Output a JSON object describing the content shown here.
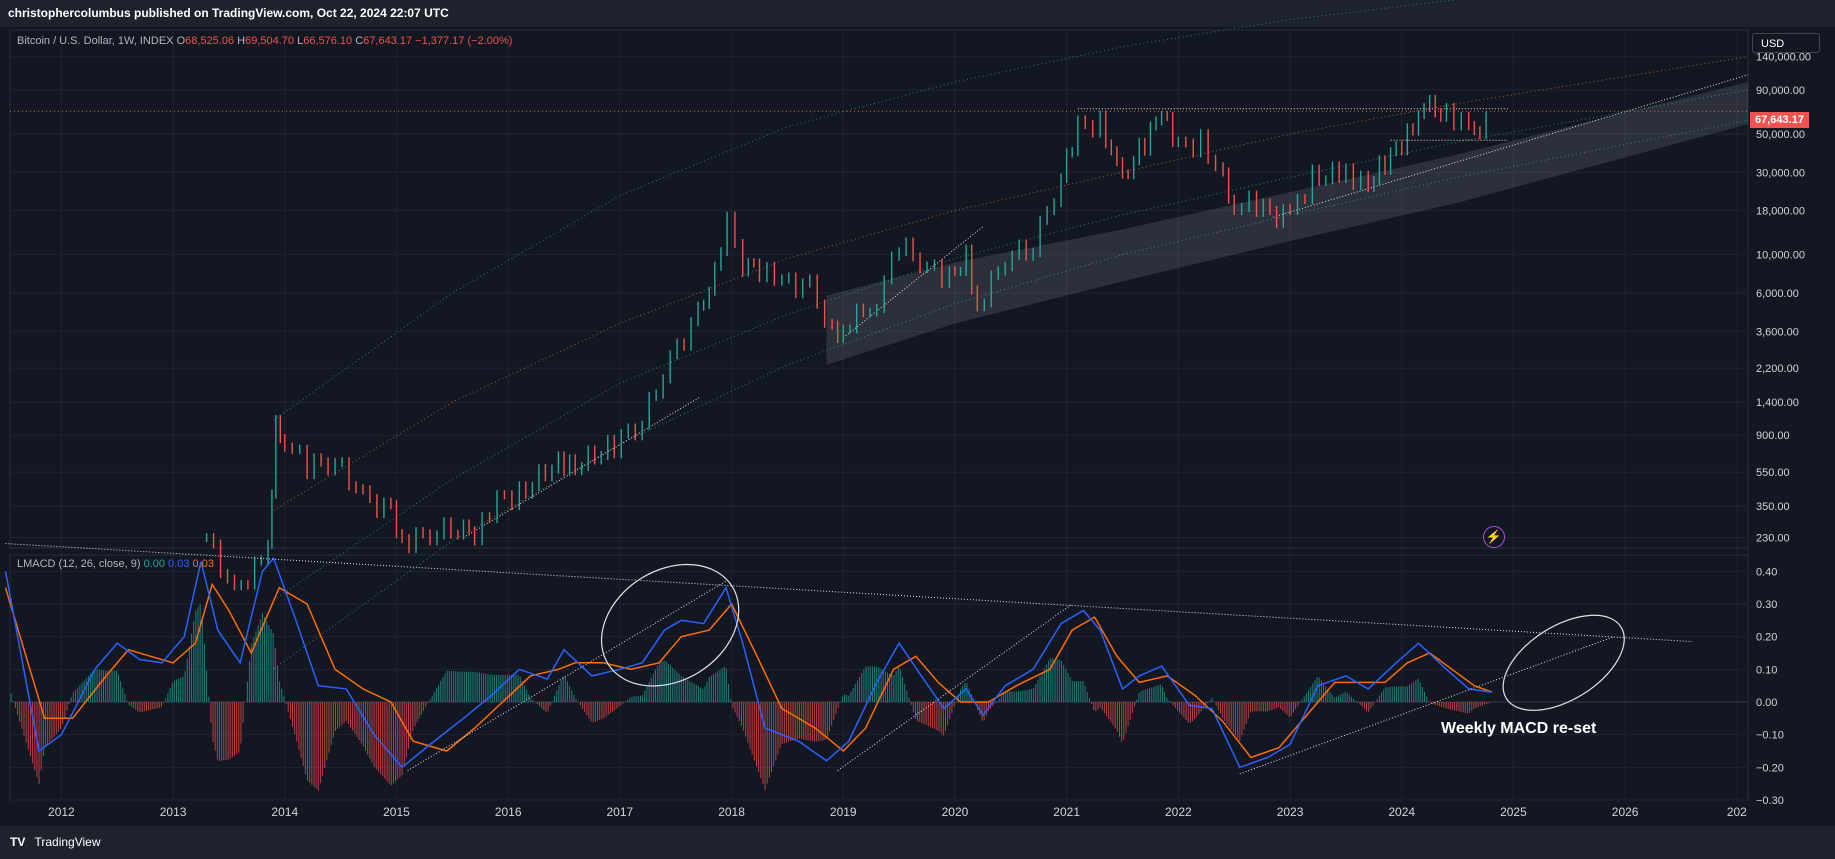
{
  "header": {
    "published": "christophercolumbus published on TradingView.com, Oct 22, 2024 22:07 UTC"
  },
  "legend": {
    "symbol": "Bitcoin / U.S. Dollar, 1W, INDEX",
    "o_label": "O",
    "o": "68,525.06",
    "h_label": "H",
    "h": "69,504.70",
    "l_label": "L",
    "l": "66,576.10",
    "c_label": "C",
    "c": "67,643.17",
    "change": "−1,377.17 (−2.00%)"
  },
  "macd_legend": {
    "name": "LMACD (12, 26, close, 9)",
    "hist": "0.00",
    "macd": "0.03",
    "signal": "0.03"
  },
  "currency": "USD",
  "last_price": "67,643.17",
  "annotation": "Weekly MACD re-set",
  "footer": {
    "brand": "TradingView",
    "icon": "tradingview-logo-icon"
  },
  "lightning_icon": "lightning-icon",
  "colors": {
    "up": "#26a69a",
    "down": "#ef5350",
    "macd": "#2962ff",
    "signal": "#ff6d00",
    "last_price": "#ef5350",
    "background": "#131722"
  },
  "chart_data": [
    {
      "type": "candlestick",
      "title": "Bitcoin / U.S. Dollar, 1W, INDEX",
      "scale": "log",
      "ylim": [
        200,
        200000
      ],
      "xlim": [
        "2011-07",
        "2027-01"
      ],
      "y_ticks": [
        "140,000.00",
        "90,000.00",
        "50,000.00",
        "30,000.00",
        "18,000.00",
        "10,000.00",
        "6,000.00",
        "3,600.00",
        "2,200.00",
        "1,400.00",
        "900.00",
        "550.00",
        "350.00",
        "230.00"
      ],
      "x_ticks": [
        "2012",
        "2013",
        "2014",
        "2015",
        "2016",
        "2017",
        "2018",
        "2019",
        "2020",
        "2021",
        "2022",
        "2023",
        "2024",
        "2025",
        "2026",
        "202"
      ],
      "grid": true,
      "last_price": 67643.17,
      "price_path": [
        [
          2013.3,
          230
        ],
        [
          2013.55,
          110
        ],
        [
          2013.85,
          190
        ],
        [
          2013.92,
          1100
        ],
        [
          2014.0,
          850
        ],
        [
          2014.2,
          600
        ],
        [
          2014.45,
          640
        ],
        [
          2014.7,
          400
        ],
        [
          2014.95,
          320
        ],
        [
          2015.05,
          220
        ],
        [
          2015.3,
          240
        ],
        [
          2015.55,
          270
        ],
        [
          2015.7,
          230
        ],
        [
          2015.9,
          380
        ],
        [
          2016.1,
          410
        ],
        [
          2016.45,
          650
        ],
        [
          2016.6,
          600
        ],
        [
          2016.95,
          800
        ],
        [
          2017.2,
          1100
        ],
        [
          2017.45,
          2500
        ],
        [
          2017.7,
          4500
        ],
        [
          2017.85,
          8000
        ],
        [
          2017.96,
          17500
        ],
        [
          2018.1,
          9000
        ],
        [
          2018.25,
          8000
        ],
        [
          2018.45,
          7000
        ],
        [
          2018.7,
          6500
        ],
        [
          2018.9,
          3600
        ],
        [
          2019.0,
          3800
        ],
        [
          2019.3,
          5500
        ],
        [
          2019.5,
          11500
        ],
        [
          2019.75,
          8500
        ],
        [
          2019.95,
          7300
        ],
        [
          2020.1,
          9800
        ],
        [
          2020.2,
          5000
        ],
        [
          2020.45,
          9500
        ],
        [
          2020.7,
          11500
        ],
        [
          2020.95,
          28000
        ],
        [
          2021.1,
          55000
        ],
        [
          2021.3,
          58000
        ],
        [
          2021.45,
          34000
        ],
        [
          2021.55,
          32000
        ],
        [
          2021.7,
          45000
        ],
        [
          2021.85,
          66000
        ],
        [
          2022.0,
          42000
        ],
        [
          2022.2,
          45000
        ],
        [
          2022.4,
          29000
        ],
        [
          2022.5,
          19500
        ],
        [
          2022.7,
          20000
        ],
        [
          2022.88,
          16000
        ],
        [
          2023.0,
          17000
        ],
        [
          2023.2,
          28000
        ],
        [
          2023.5,
          30000
        ],
        [
          2023.7,
          26000
        ],
        [
          2023.85,
          35000
        ],
        [
          2024.0,
          43000
        ],
        [
          2024.15,
          62000
        ],
        [
          2024.25,
          71000
        ],
        [
          2024.4,
          66000
        ],
        [
          2024.6,
          58000
        ],
        [
          2024.7,
          56000
        ],
        [
          2024.81,
          67643
        ]
      ]
    },
    {
      "type": "line",
      "title": "LMACD (12, 26, close, 9)",
      "ylim": [
        -0.3,
        0.45
      ],
      "y_ticks": [
        "0.40",
        "0.30",
        "0.20",
        "0.10",
        "0.00",
        "−0.10",
        "−0.20",
        "−0.30"
      ],
      "series": [
        {
          "name": "MACD",
          "x": [
            2011.5,
            2011.8,
            2012.0,
            2012.3,
            2012.5,
            2012.7,
            2012.9,
            2013.1,
            2013.25,
            2013.4,
            2013.6,
            2013.8,
            2013.9,
            2014.1,
            2014.3,
            2014.55,
            2014.8,
            2015.05,
            2015.3,
            2015.6,
            2015.85,
            2016.1,
            2016.35,
            2016.5,
            2016.75,
            2017.0,
            2017.2,
            2017.4,
            2017.55,
            2017.75,
            2017.95,
            2018.1,
            2018.3,
            2018.6,
            2018.85,
            2019.05,
            2019.3,
            2019.5,
            2019.7,
            2019.9,
            2020.1,
            2020.25,
            2020.45,
            2020.7,
            2020.95,
            2021.15,
            2021.3,
            2021.5,
            2021.65,
            2021.85,
            2022.1,
            2022.3,
            2022.55,
            2022.8,
            2023.0,
            2023.25,
            2023.5,
            2023.7,
            2023.95,
            2024.15,
            2024.4,
            2024.6,
            2024.81
          ],
          "values": [
            0.4,
            -0.15,
            -0.1,
            0.1,
            0.18,
            0.13,
            0.12,
            0.2,
            0.43,
            0.22,
            0.12,
            0.4,
            0.44,
            0.25,
            0.05,
            0.04,
            -0.1,
            -0.2,
            -0.13,
            -0.05,
            0.02,
            0.1,
            0.07,
            0.16,
            0.08,
            0.1,
            0.12,
            0.22,
            0.25,
            0.24,
            0.35,
            0.18,
            -0.08,
            -0.12,
            -0.18,
            -0.12,
            0.06,
            0.18,
            0.08,
            -0.02,
            0.04,
            -0.04,
            0.05,
            0.1,
            0.24,
            0.28,
            0.22,
            0.04,
            0.08,
            0.11,
            -0.01,
            -0.02,
            -0.2,
            -0.17,
            -0.13,
            0.05,
            0.08,
            0.04,
            0.12,
            0.18,
            0.1,
            0.04,
            0.03
          ]
        },
        {
          "name": "Signal",
          "x": [
            2011.5,
            2011.85,
            2012.1,
            2012.4,
            2012.6,
            2012.8,
            2013.0,
            2013.2,
            2013.35,
            2013.5,
            2013.7,
            2013.95,
            2014.2,
            2014.45,
            2014.7,
            2014.95,
            2015.15,
            2015.45,
            2015.7,
            2015.95,
            2016.2,
            2016.45,
            2016.6,
            2016.85,
            2017.1,
            2017.35,
            2017.55,
            2017.8,
            2018.0,
            2018.2,
            2018.45,
            2018.75,
            2019.0,
            2019.2,
            2019.45,
            2019.65,
            2019.85,
            2020.05,
            2020.3,
            2020.55,
            2020.85,
            2021.05,
            2021.25,
            2021.45,
            2021.65,
            2021.9,
            2022.15,
            2022.4,
            2022.65,
            2022.9,
            2023.15,
            2023.4,
            2023.6,
            2023.85,
            2024.05,
            2024.25,
            2024.45,
            2024.65,
            2024.81
          ],
          "values": [
            0.35,
            -0.05,
            -0.05,
            0.08,
            0.16,
            0.14,
            0.12,
            0.18,
            0.36,
            0.28,
            0.15,
            0.35,
            0.3,
            0.1,
            0.04,
            0.0,
            -0.12,
            -0.15,
            -0.08,
            0.0,
            0.08,
            0.1,
            0.12,
            0.12,
            0.1,
            0.12,
            0.2,
            0.22,
            0.3,
            0.16,
            -0.02,
            -0.08,
            -0.15,
            -0.08,
            0.1,
            0.14,
            0.06,
            0.0,
            0.0,
            0.05,
            0.1,
            0.22,
            0.26,
            0.14,
            0.06,
            0.08,
            0.02,
            -0.06,
            -0.17,
            -0.14,
            -0.04,
            0.06,
            0.06,
            0.06,
            0.12,
            0.15,
            0.1,
            0.05,
            0.03
          ]
        }
      ]
    }
  ]
}
